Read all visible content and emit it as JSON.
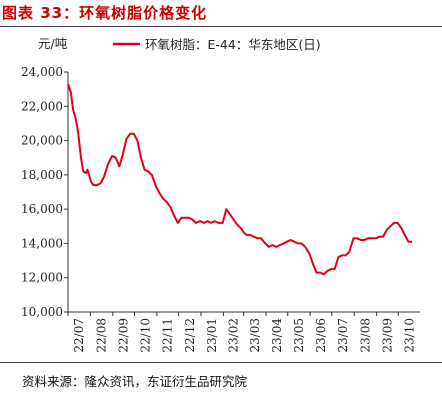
{
  "figure": {
    "title": "图表 33：环氧树脂价格变化",
    "source": "资料来源：隆众资讯，东证衍生品研究院"
  },
  "chart_data": {
    "type": "line",
    "unit": "元/吨",
    "ylim": [
      10000,
      24000
    ],
    "yticks": [
      "24,000",
      "22,000",
      "20,000",
      "18,000",
      "16,000",
      "14,000",
      "12,000",
      "10,000"
    ],
    "ytick_values": [
      24000,
      22000,
      20000,
      18000,
      16000,
      14000,
      12000,
      10000
    ],
    "xticks": [
      "22/07",
      "22/08",
      "22/09",
      "22/10",
      "22/11",
      "22/12",
      "23/01",
      "23/02",
      "23/03",
      "23/04",
      "23/05",
      "23/06",
      "23/07",
      "23/08",
      "23/09",
      "23/10"
    ],
    "grid": false,
    "legend_position": "top",
    "series": [
      {
        "name": "环氧树脂：E-44：华东地区(日)",
        "color": "#e0001a",
        "x": [
          "2022-07-01",
          "2022-07-05",
          "2022-07-08",
          "2022-07-12",
          "2022-07-15",
          "2022-07-19",
          "2022-07-22",
          "2022-07-26",
          "2022-07-28",
          "2022-08-02",
          "2022-08-05",
          "2022-08-10",
          "2022-08-15",
          "2022-08-20",
          "2022-08-25",
          "2022-08-31",
          "2022-09-05",
          "2022-09-10",
          "2022-09-15",
          "2022-09-20",
          "2022-09-25",
          "2022-09-30",
          "2022-10-05",
          "2022-10-10",
          "2022-10-15",
          "2022-10-20",
          "2022-10-25",
          "2022-10-31",
          "2022-11-05",
          "2022-11-10",
          "2022-11-15",
          "2022-11-20",
          "2022-11-25",
          "2022-11-30",
          "2022-12-05",
          "2022-12-10",
          "2022-12-15",
          "2022-12-20",
          "2022-12-25",
          "2022-12-31",
          "2023-01-05",
          "2023-01-10",
          "2023-01-15",
          "2023-01-20",
          "2023-01-25",
          "2023-01-31",
          "2023-02-05",
          "2023-02-10",
          "2023-02-15",
          "2023-02-20",
          "2023-02-25",
          "2023-02-28",
          "2023-03-05",
          "2023-03-10",
          "2023-03-15",
          "2023-03-20",
          "2023-03-25",
          "2023-03-31",
          "2023-04-05",
          "2023-04-10",
          "2023-04-15",
          "2023-04-20",
          "2023-04-25",
          "2023-04-30",
          "2023-05-05",
          "2023-05-10",
          "2023-05-15",
          "2023-05-20",
          "2023-05-25",
          "2023-05-31",
          "2023-06-05",
          "2023-06-10",
          "2023-06-15",
          "2023-06-20",
          "2023-06-25",
          "2023-06-30",
          "2023-07-05",
          "2023-07-10",
          "2023-07-15",
          "2023-07-20",
          "2023-07-25",
          "2023-07-31",
          "2023-08-05",
          "2023-08-10",
          "2023-08-15",
          "2023-08-20",
          "2023-08-25",
          "2023-08-31",
          "2023-09-05",
          "2023-09-10",
          "2023-09-15",
          "2023-09-20",
          "2023-09-25",
          "2023-09-30",
          "2023-10-05",
          "2023-10-10",
          "2023-10-15",
          "2023-10-20"
        ],
        "y": [
          23300,
          22800,
          21800,
          21200,
          20500,
          19000,
          18200,
          18100,
          18300,
          17600,
          17400,
          17400,
          17500,
          17900,
          18600,
          19100,
          19000,
          18500,
          19200,
          20100,
          20400,
          20400,
          20000,
          19000,
          18300,
          18200,
          18000,
          17300,
          16900,
          16600,
          16400,
          16100,
          15600,
          15200,
          15500,
          15500,
          15500,
          15400,
          15200,
          15300,
          15200,
          15300,
          15200,
          15300,
          15200,
          15200,
          16000,
          15700,
          15400,
          15100,
          14900,
          14700,
          14500,
          14500,
          14400,
          14300,
          14300,
          14000,
          13800,
          13900,
          13800,
          13900,
          14000,
          14100,
          14200,
          14100,
          14000,
          14000,
          13800,
          13400,
          12800,
          12300,
          12300,
          12200,
          12400,
          12500,
          12500,
          13200,
          13300,
          13300,
          13500,
          14300,
          14300,
          14200,
          14200,
          14300,
          14300,
          14300,
          14400,
          14400,
          14800,
          15000,
          15200,
          15200,
          14900,
          14500,
          14100,
          14100
        ]
      }
    ]
  }
}
